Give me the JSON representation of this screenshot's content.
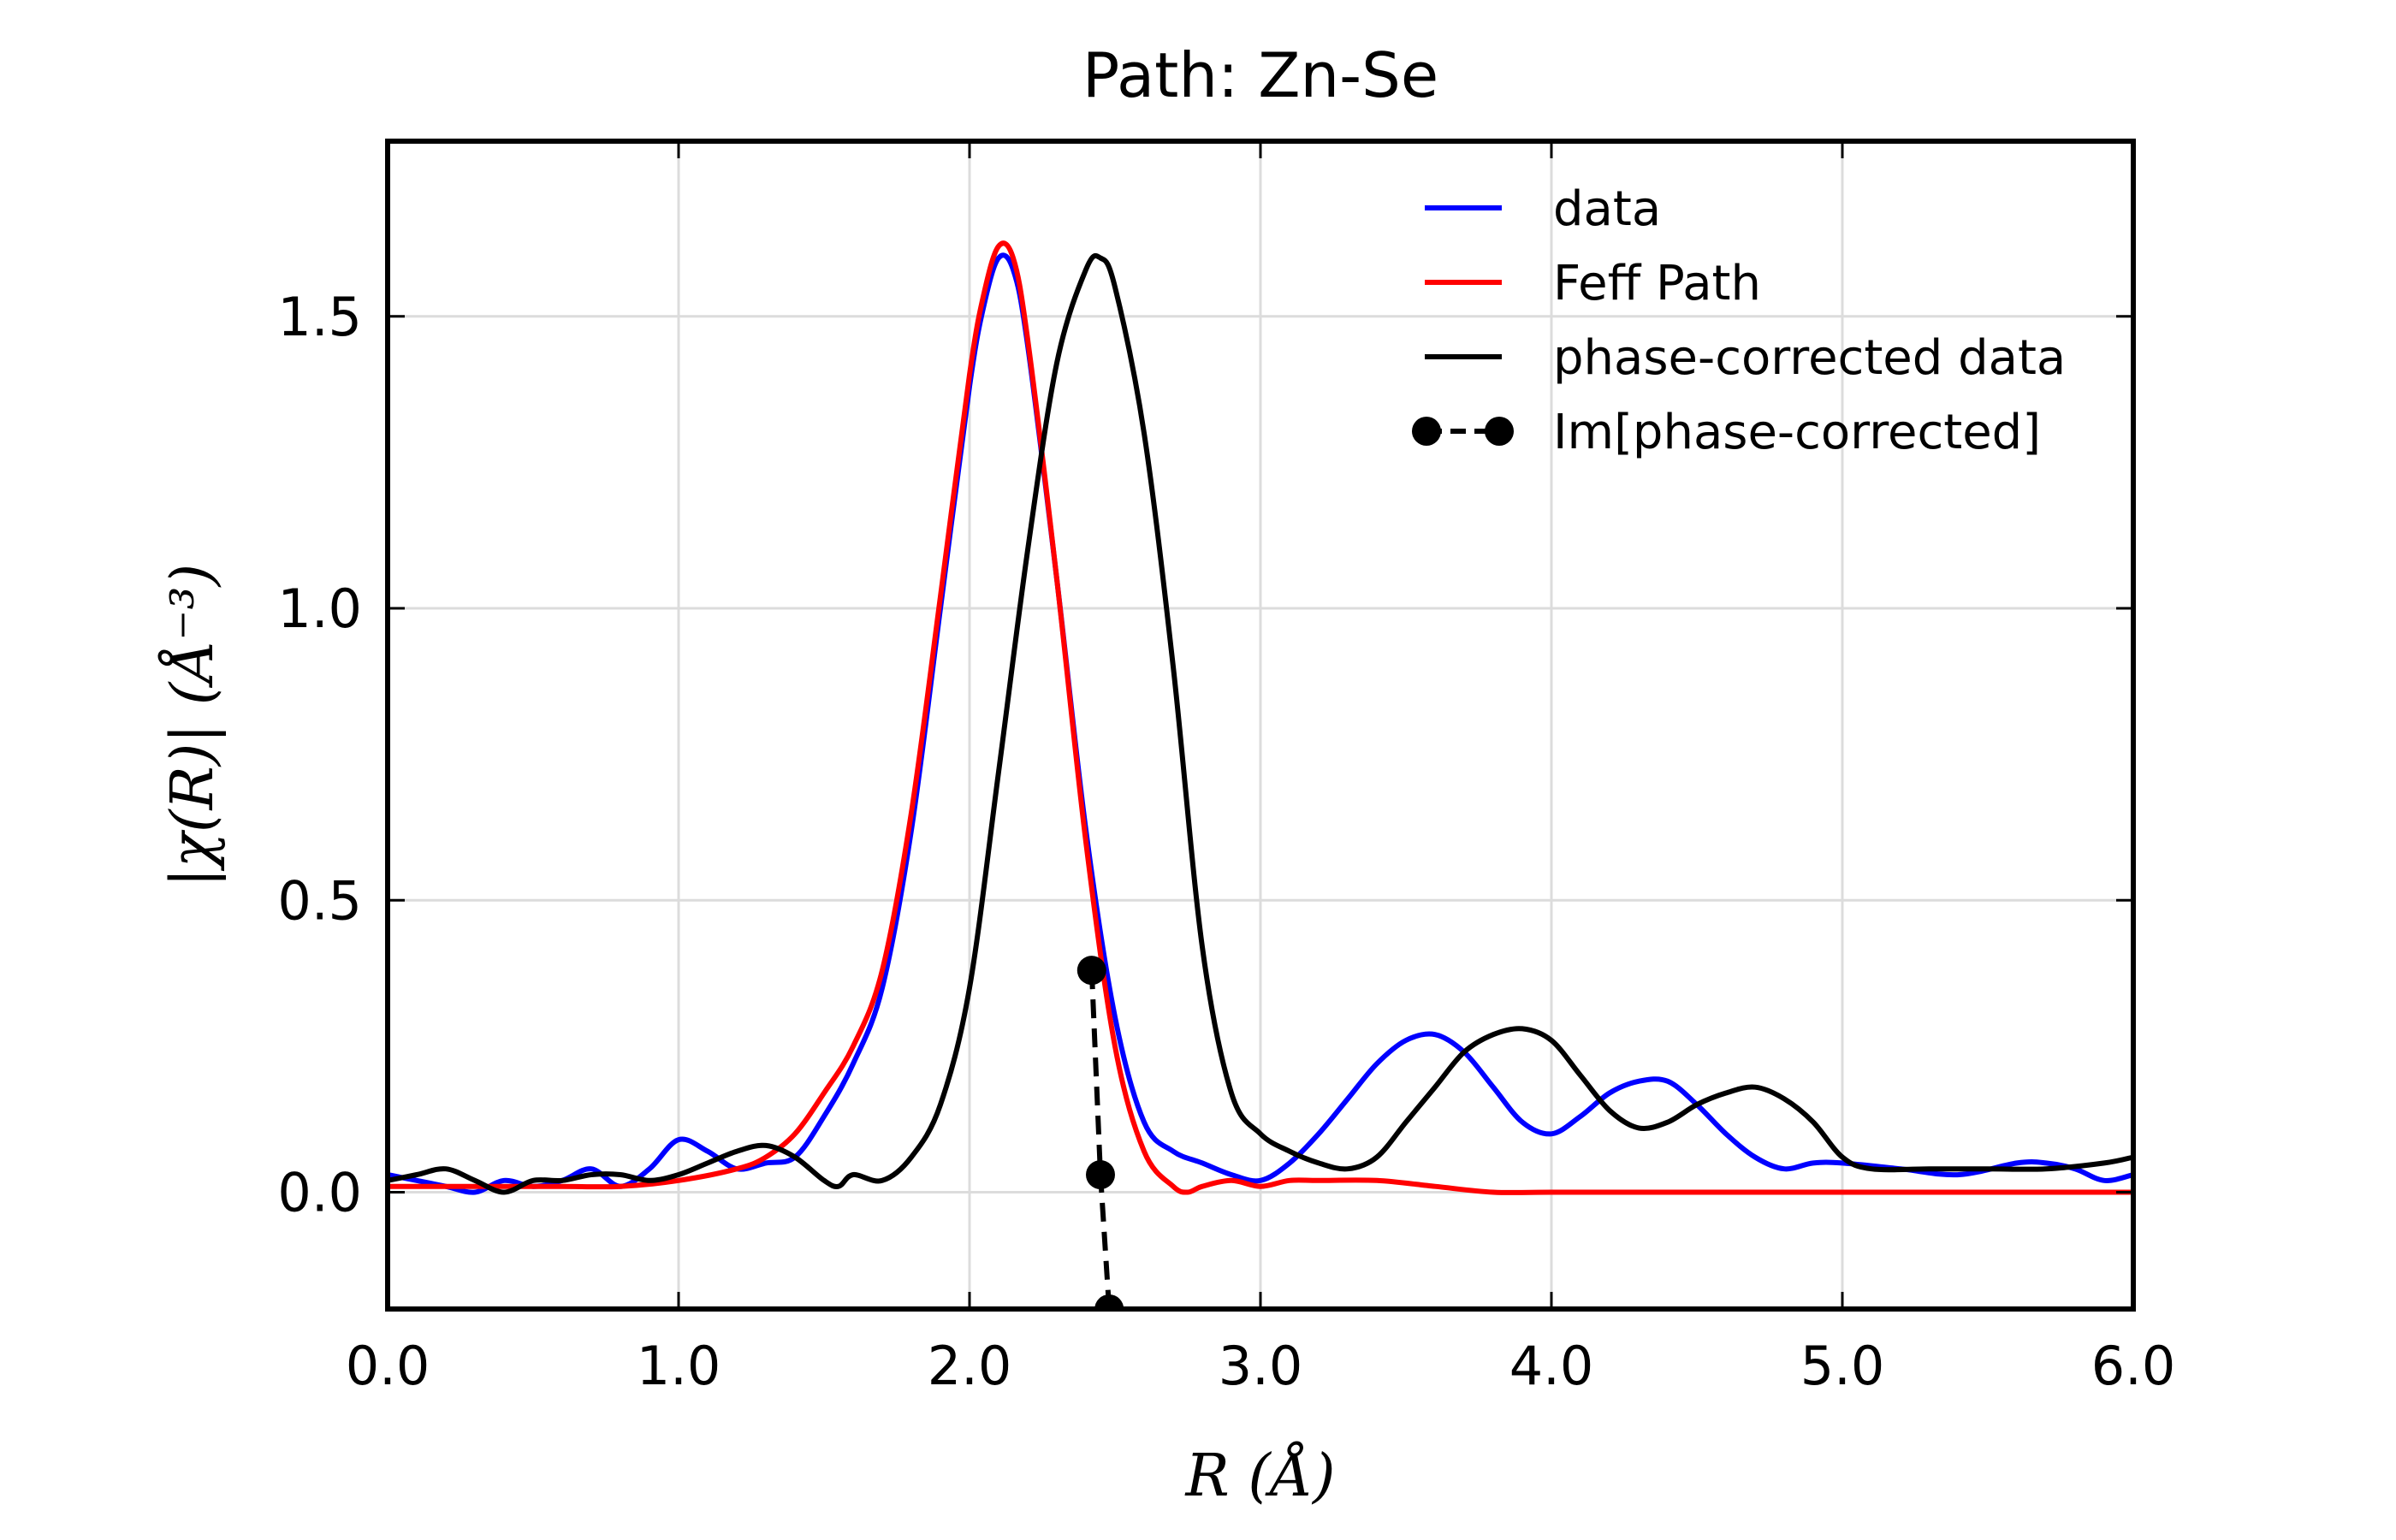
{
  "chart_data": {
    "type": "line",
    "title": "Path: Zn-Se",
    "xlabel": "R (Å)",
    "ylabel": "|χ(R)| (Å⁻³)",
    "xlim": [
      0.0,
      6.0
    ],
    "ylim": [
      -0.2,
      1.8
    ],
    "xticks": [
      0.0,
      1.0,
      2.0,
      3.0,
      4.0,
      5.0,
      6.0
    ],
    "xtick_labels": [
      "0.0",
      "1.0",
      "2.0",
      "3.0",
      "4.0",
      "5.0",
      "6.0"
    ],
    "yticks": [
      0.0,
      0.5,
      1.0,
      1.5
    ],
    "ytick_labels": [
      "0.0",
      "0.5",
      "1.0",
      "1.5"
    ],
    "grid": true,
    "legend_position": "top-right",
    "series": [
      {
        "name": "data",
        "color": "#0000ff",
        "style": "solid",
        "x": [
          0.0,
          0.1,
          0.2,
          0.3,
          0.4,
          0.5,
          0.6,
          0.7,
          0.8,
          0.9,
          1.0,
          1.1,
          1.2,
          1.3,
          1.4,
          1.5,
          1.6,
          1.7,
          1.8,
          1.9,
          2.0,
          2.05,
          2.1,
          2.15,
          2.2,
          2.3,
          2.4,
          2.5,
          2.6,
          2.7,
          2.8,
          2.9,
          3.0,
          3.1,
          3.2,
          3.3,
          3.4,
          3.5,
          3.6,
          3.7,
          3.8,
          3.9,
          4.0,
          4.1,
          4.2,
          4.3,
          4.4,
          4.5,
          4.6,
          4.7,
          4.8,
          4.9,
          5.0,
          5.2,
          5.4,
          5.6,
          5.7,
          5.8,
          5.9,
          6.0
        ],
        "y": [
          0.03,
          0.02,
          0.01,
          0.0,
          0.02,
          0.01,
          0.02,
          0.04,
          0.01,
          0.04,
          0.09,
          0.07,
          0.04,
          0.05,
          0.06,
          0.13,
          0.22,
          0.35,
          0.62,
          1.0,
          1.38,
          1.52,
          1.6,
          1.58,
          1.45,
          1.05,
          0.62,
          0.3,
          0.12,
          0.07,
          0.05,
          0.03,
          0.02,
          0.05,
          0.1,
          0.16,
          0.22,
          0.26,
          0.27,
          0.24,
          0.18,
          0.12,
          0.1,
          0.13,
          0.17,
          0.19,
          0.19,
          0.15,
          0.1,
          0.06,
          0.04,
          0.05,
          0.05,
          0.04,
          0.03,
          0.05,
          0.05,
          0.04,
          0.02,
          0.03
        ]
      },
      {
        "name": "Feff Path",
        "color": "#ff0000",
        "style": "solid",
        "x": [
          0.0,
          0.2,
          0.4,
          0.6,
          0.8,
          1.0,
          1.2,
          1.3,
          1.4,
          1.5,
          1.6,
          1.7,
          1.8,
          1.9,
          2.0,
          2.05,
          2.1,
          2.15,
          2.2,
          2.3,
          2.4,
          2.5,
          2.6,
          2.7,
          2.75,
          2.8,
          2.9,
          3.0,
          3.1,
          3.2,
          3.4,
          3.6,
          3.8,
          4.0,
          4.5,
          5.0,
          5.5,
          6.0
        ],
        "y": [
          0.01,
          0.01,
          0.01,
          0.01,
          0.01,
          0.02,
          0.04,
          0.06,
          0.1,
          0.17,
          0.25,
          0.38,
          0.65,
          1.02,
          1.4,
          1.54,
          1.62,
          1.6,
          1.46,
          1.05,
          0.6,
          0.25,
          0.07,
          0.01,
          0.0,
          0.01,
          0.02,
          0.01,
          0.02,
          0.02,
          0.02,
          0.01,
          0.0,
          0.0,
          0.0,
          0.0,
          0.0,
          0.0
        ]
      },
      {
        "name": "phase-corrected data",
        "color": "#000000",
        "style": "solid",
        "x": [
          0.0,
          0.1,
          0.2,
          0.3,
          0.4,
          0.5,
          0.6,
          0.7,
          0.8,
          0.9,
          1.0,
          1.1,
          1.2,
          1.3,
          1.4,
          1.5,
          1.55,
          1.6,
          1.7,
          1.8,
          1.9,
          2.0,
          2.1,
          2.2,
          2.3,
          2.4,
          2.45,
          2.5,
          2.6,
          2.7,
          2.8,
          2.9,
          3.0,
          3.1,
          3.2,
          3.3,
          3.4,
          3.5,
          3.6,
          3.7,
          3.8,
          3.9,
          4.0,
          4.1,
          4.2,
          4.3,
          4.4,
          4.5,
          4.6,
          4.7,
          4.8,
          4.9,
          5.0,
          5.1,
          5.3,
          5.5,
          5.7,
          5.9,
          6.0
        ],
        "y": [
          0.02,
          0.03,
          0.04,
          0.02,
          0.0,
          0.02,
          0.02,
          0.03,
          0.03,
          0.02,
          0.03,
          0.05,
          0.07,
          0.08,
          0.06,
          0.02,
          0.01,
          0.03,
          0.02,
          0.06,
          0.15,
          0.35,
          0.72,
          1.1,
          1.42,
          1.58,
          1.6,
          1.55,
          1.3,
          0.9,
          0.42,
          0.17,
          0.1,
          0.07,
          0.05,
          0.04,
          0.06,
          0.12,
          0.18,
          0.24,
          0.27,
          0.28,
          0.26,
          0.2,
          0.14,
          0.11,
          0.12,
          0.15,
          0.17,
          0.18,
          0.16,
          0.12,
          0.06,
          0.04,
          0.04,
          0.04,
          0.04,
          0.05,
          0.06
        ]
      },
      {
        "name": "Im[phase-corrected]",
        "color": "#000000",
        "style": "dashed-markers",
        "x": [
          2.42,
          2.45,
          2.48
        ],
        "y": [
          0.38,
          0.03,
          -0.2
        ]
      }
    ]
  }
}
